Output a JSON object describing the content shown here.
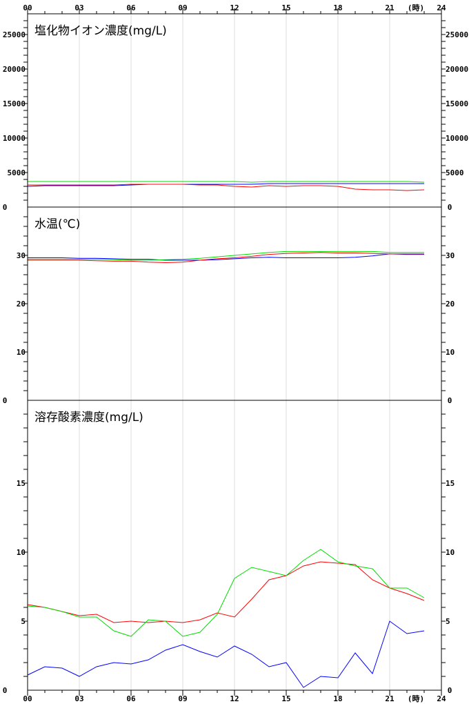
{
  "x_axis": {
    "tick_labels": [
      "00",
      "03",
      "06",
      "09",
      "12",
      "15",
      "18",
      "21",
      "24"
    ],
    "unit": "(時)"
  },
  "colors": {
    "series_1": "#0000ff",
    "series_2": "#ff0000",
    "series_3": "#00dd00",
    "grid": "#dddddd"
  },
  "chart_data": [
    {
      "type": "line",
      "title": "塩化物イオン濃度(mg/L)",
      "ylim": [
        0,
        28000
      ],
      "y_ticks": [
        "0",
        "5000",
        "10000",
        "15000",
        "20000",
        "25000"
      ],
      "x": [
        0,
        1,
        2,
        3,
        4,
        5,
        6,
        7,
        8,
        9,
        10,
        11,
        12,
        13,
        14,
        15,
        16,
        17,
        18,
        19,
        20,
        21,
        22,
        23
      ],
      "series": [
        {
          "color": "blue",
          "values": [
            3000,
            3100,
            3100,
            3100,
            3100,
            3100,
            3200,
            3300,
            3300,
            3300,
            3300,
            3300,
            3300,
            3300,
            3400,
            3400,
            3400,
            3400,
            3400,
            3400,
            3400,
            3400,
            3400,
            3400
          ]
        },
        {
          "color": "red",
          "values": [
            3200,
            3200,
            3200,
            3200,
            3200,
            3200,
            3300,
            3300,
            3300,
            3300,
            3200,
            3200,
            3000,
            2900,
            3100,
            3000,
            3100,
            3100,
            3000,
            2600,
            2500,
            2500,
            2400,
            2500
          ]
        },
        {
          "color": "green",
          "values": [
            3700,
            3700,
            3700,
            3700,
            3700,
            3700,
            3700,
            3700,
            3700,
            3700,
            3700,
            3700,
            3700,
            3600,
            3700,
            3700,
            3700,
            3700,
            3700,
            3700,
            3700,
            3700,
            3700,
            3600
          ]
        }
      ]
    },
    {
      "type": "line",
      "title": "水温(℃)",
      "ylim": [
        0,
        40
      ],
      "y_ticks": [
        "0",
        "10",
        "20",
        "30"
      ],
      "x": [
        0,
        1,
        2,
        3,
        4,
        5,
        6,
        7,
        8,
        9,
        10,
        11,
        12,
        13,
        14,
        15,
        16,
        17,
        18,
        19,
        20,
        21,
        22,
        23
      ],
      "series": [
        {
          "color": "blue",
          "values": [
            29.5,
            29.5,
            29.5,
            29.4,
            29.4,
            29.3,
            29.2,
            29.2,
            29.0,
            29.0,
            29.0,
            29.1,
            29.3,
            29.5,
            29.6,
            29.5,
            29.5,
            29.5,
            29.5,
            29.6,
            29.9,
            30.3,
            30.2,
            30.2
          ]
        },
        {
          "color": "red",
          "values": [
            29.0,
            29.0,
            29.0,
            29.0,
            28.9,
            28.8,
            28.8,
            28.6,
            28.5,
            28.6,
            29.0,
            29.3,
            29.5,
            29.8,
            30.2,
            30.4,
            30.5,
            30.6,
            30.5,
            30.5,
            30.4,
            30.3,
            30.3,
            30.3
          ]
        },
        {
          "color": "green",
          "values": [
            29.2,
            29.2,
            29.2,
            29.2,
            29.2,
            29.1,
            29.0,
            29.0,
            29.1,
            29.2,
            29.4,
            29.7,
            30.0,
            30.3,
            30.6,
            30.8,
            30.8,
            30.8,
            30.8,
            30.8,
            30.8,
            30.6,
            30.6,
            30.6
          ]
        }
      ]
    },
    {
      "type": "line",
      "title": "溶存酸素濃度(mg/L)",
      "ylim": [
        0,
        21
      ],
      "y_ticks": [
        "0",
        "5",
        "10",
        "15"
      ],
      "x": [
        0,
        1,
        2,
        3,
        4,
        5,
        6,
        7,
        8,
        9,
        10,
        11,
        12,
        13,
        14,
        15,
        16,
        17,
        18,
        19,
        20,
        21,
        22,
        23
      ],
      "series": [
        {
          "color": "blue",
          "values": [
            1.1,
            1.7,
            1.6,
            1.0,
            1.7,
            2.0,
            1.9,
            2.2,
            2.9,
            3.3,
            2.8,
            2.4,
            3.2,
            2.6,
            1.7,
            2.0,
            0.2,
            1.0,
            0.9,
            2.7,
            1.2,
            5.0,
            4.1,
            4.3
          ]
        },
        {
          "color": "red",
          "values": [
            6.2,
            6.0,
            5.7,
            5.4,
            5.5,
            4.9,
            5.0,
            4.9,
            5.0,
            4.9,
            5.1,
            5.6,
            5.3,
            6.6,
            8.0,
            8.3,
            9.0,
            9.3,
            9.2,
            9.1,
            8.0,
            7.4,
            7.0,
            6.5
          ]
        },
        {
          "color": "green",
          "values": [
            6.1,
            6.0,
            5.7,
            5.3,
            5.3,
            4.3,
            3.9,
            5.1,
            5.0,
            3.9,
            4.2,
            5.5,
            8.1,
            8.9,
            8.6,
            8.3,
            9.4,
            10.2,
            9.3,
            9.0,
            8.8,
            7.4,
            7.4,
            6.7
          ]
        }
      ]
    }
  ]
}
